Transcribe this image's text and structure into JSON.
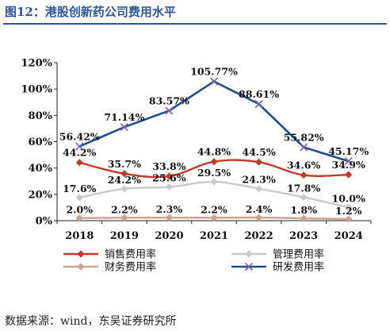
{
  "title": "图12：港股创新药公司费用水平",
  "source": "数据来源：wind，东吴证券研究所",
  "chart_data": {
    "type": "line",
    "x": [
      "2018",
      "2019",
      "2020",
      "2021",
      "2022",
      "2023",
      "2024"
    ],
    "ylim": [
      0,
      120
    ],
    "yticks": [
      "0%",
      "20%",
      "40%",
      "60%",
      "80%",
      "100%",
      "120%"
    ],
    "grid": false,
    "legend_position": "bottom",
    "series": [
      {
        "name": "销售费用率",
        "color": "#c0392b",
        "marker": "diamond",
        "values": [
          44.2,
          35.7,
          33.8,
          44.8,
          44.5,
          34.6,
          34.9
        ],
        "labels": [
          "44.2%",
          "35.7%",
          "33.8%",
          "44.8%",
          "44.5%",
          "34.6%",
          "34.9%"
        ]
      },
      {
        "name": "管理费用率",
        "color": "#c9c9c9",
        "marker": "diamond",
        "values": [
          17.6,
          24.2,
          25.6,
          29.5,
          24.3,
          17.8,
          10.0
        ],
        "labels": [
          "17.6%",
          "24.2%",
          "25.6%",
          "29.5%",
          "24.3%",
          "17.8%",
          "10.0%"
        ]
      },
      {
        "name": "财务费用率",
        "color": "#c9a195",
        "marker": "diamond",
        "values": [
          2.0,
          2.2,
          2.3,
          2.2,
          2.4,
          1.8,
          1.2
        ],
        "labels": [
          "2.0%",
          "2.2%",
          "2.3%",
          "2.2%",
          "2.4%",
          "1.8%",
          "1.2%"
        ]
      },
      {
        "name": "研发费用率",
        "color": "#1f4e8c",
        "marker": "x",
        "values": [
          56.42,
          71.14,
          83.57,
          105.77,
          88.61,
          55.82,
          45.17
        ],
        "labels": [
          "56.42%",
          "71.14%",
          "83.57%",
          "105.77%",
          "88.61%",
          "55.82%",
          "45.17%"
        ]
      }
    ]
  }
}
